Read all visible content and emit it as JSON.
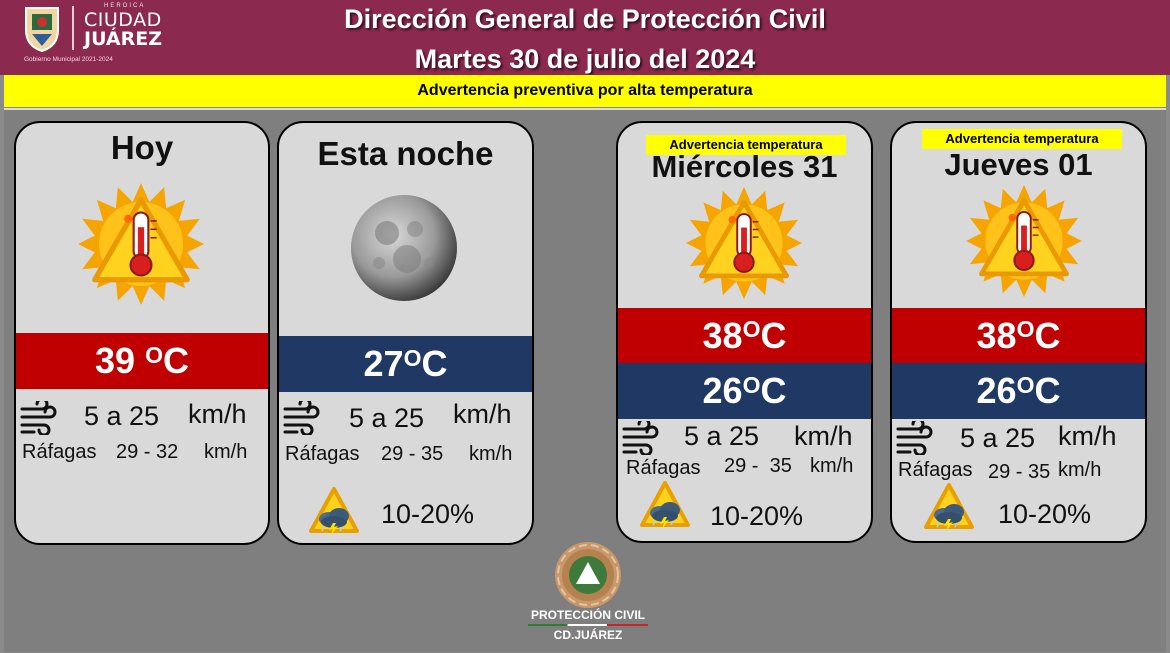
{
  "header": {
    "logo": {
      "heroica": "HEROICA",
      "city_line1": "CIUDAD",
      "city_line2": "JUÁREZ",
      "gov": "Gobierno Municipal 2021-2024"
    },
    "title": "Dirección General de Protección Civil",
    "date": "Martes 30 de julio del 2024",
    "advisory": "Advertencia preventiva por alta temperatura"
  },
  "colors": {
    "header_bg": "#8b2a4e",
    "advisory_bg": "#ffff00",
    "temp_high_band": "#c00000",
    "temp_low_band": "#1f3864",
    "card_bg": "#d9d9d9",
    "panel_bg": "#7f7f7f"
  },
  "cards": [
    {
      "title": "Hoy",
      "icon": "heat-warning-sun-icon",
      "temp_high": "39",
      "temp_unit": "C",
      "wind_speed": "5 a 25",
      "wind_unit": "km/h",
      "gust_label": "Ráfagas",
      "gust_range": "29 - 32",
      "gust_unit": "km/h"
    },
    {
      "title": "Esta noche",
      "icon": "moon-icon",
      "temp_low": "27",
      "temp_unit": "C",
      "wind_speed": "5 a 25",
      "wind_unit": "km/h",
      "gust_label": "Ráfagas",
      "gust_range": "29 - 35",
      "gust_unit": "km/h",
      "rain_icon": "storm-warning-icon",
      "rain_prob": "10-20%"
    },
    {
      "warning": "Advertencia temperatura",
      "title": "Miércoles 31",
      "icon": "heat-warning-sun-icon",
      "temp_high": "38",
      "temp_low": "26",
      "temp_unit": "C",
      "wind_speed": "5 a 25",
      "wind_unit": "km/h",
      "gust_label": "Ráfagas",
      "gust_range": "29 -  35",
      "gust_unit": "km/h",
      "rain_icon": "storm-warning-icon",
      "rain_prob": "10-20%"
    },
    {
      "warning": "Advertencia temperatura",
      "title": "Jueves 01",
      "icon": "heat-warning-sun-icon",
      "temp_high": "38",
      "temp_low": "26",
      "temp_unit": "C",
      "wind_speed": "5 a 25",
      "wind_unit": "km/h",
      "gust_label": "Ráfagas",
      "gust_range": "29 - 35",
      "gust_unit": "km/h",
      "rain_icon": "storm-warning-icon",
      "rain_prob": "10-20%"
    }
  ],
  "footer": {
    "line1": "PROTECCIÓN CIVIL",
    "line2": "CD.JUÁREZ"
  }
}
